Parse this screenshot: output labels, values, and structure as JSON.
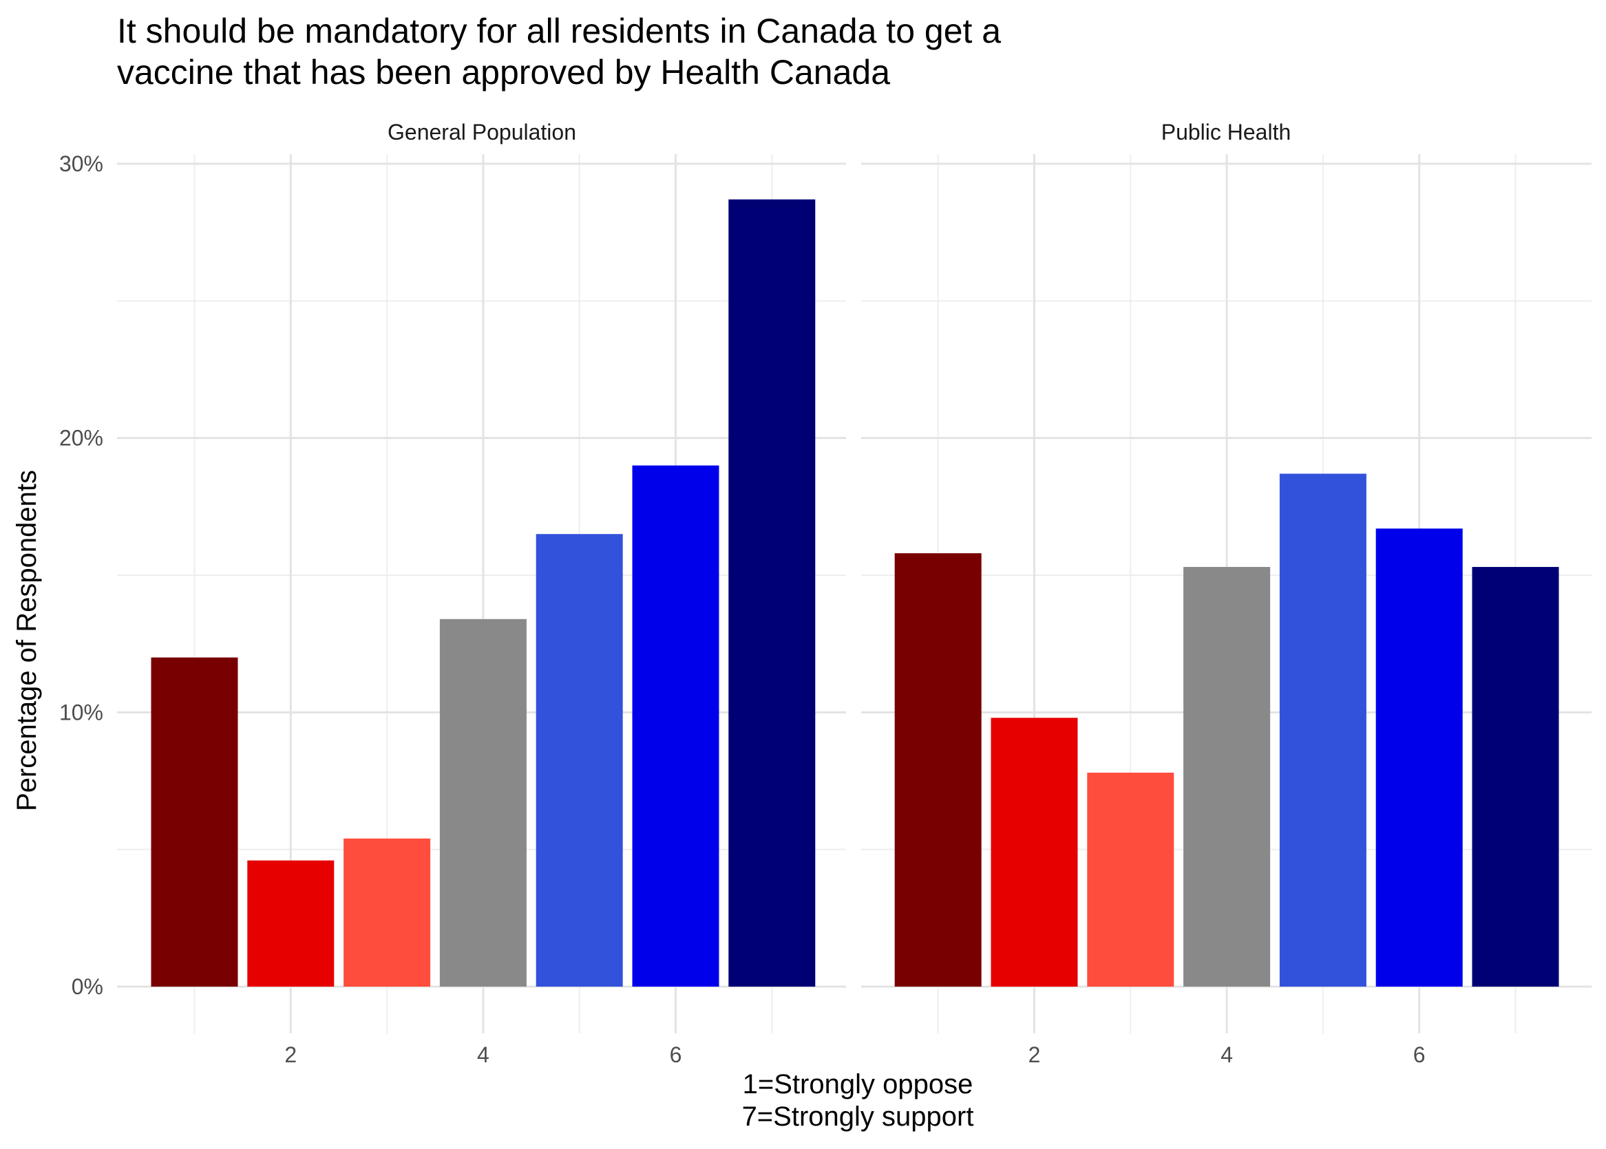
{
  "chart_data": {
    "type": "bar",
    "title_lines": [
      "It should be mandatory for all residents in Canada to get a",
      "vaccine that has been approved by Health Canada"
    ],
    "ylabel": "Percentage of Respondents",
    "xlabel_lines": [
      "1=Strongly oppose",
      "7=Strongly support"
    ],
    "ylim": [
      0,
      30
    ],
    "y_ticks": [
      0,
      10,
      20,
      30
    ],
    "y_tick_labels": [
      "0%",
      "10%",
      "20%",
      "30%"
    ],
    "x_ticks": [
      2,
      4,
      6
    ],
    "x_tick_labels": [
      "2",
      "4",
      "6"
    ],
    "categories": [
      1,
      2,
      3,
      4,
      5,
      6,
      7
    ],
    "grid": true,
    "bar_colors": [
      "#780000",
      "#e60000",
      "#ff4d3d",
      "#898989",
      "#3352db",
      "#0000eb",
      "#000075"
    ],
    "panels": [
      {
        "name": "General Population",
        "values": [
          12.0,
          4.6,
          5.4,
          13.4,
          16.5,
          19.0,
          28.7
        ]
      },
      {
        "name": "Public Health",
        "values": [
          15.8,
          9.8,
          7.8,
          15.3,
          18.7,
          16.7,
          15.3
        ]
      }
    ]
  }
}
